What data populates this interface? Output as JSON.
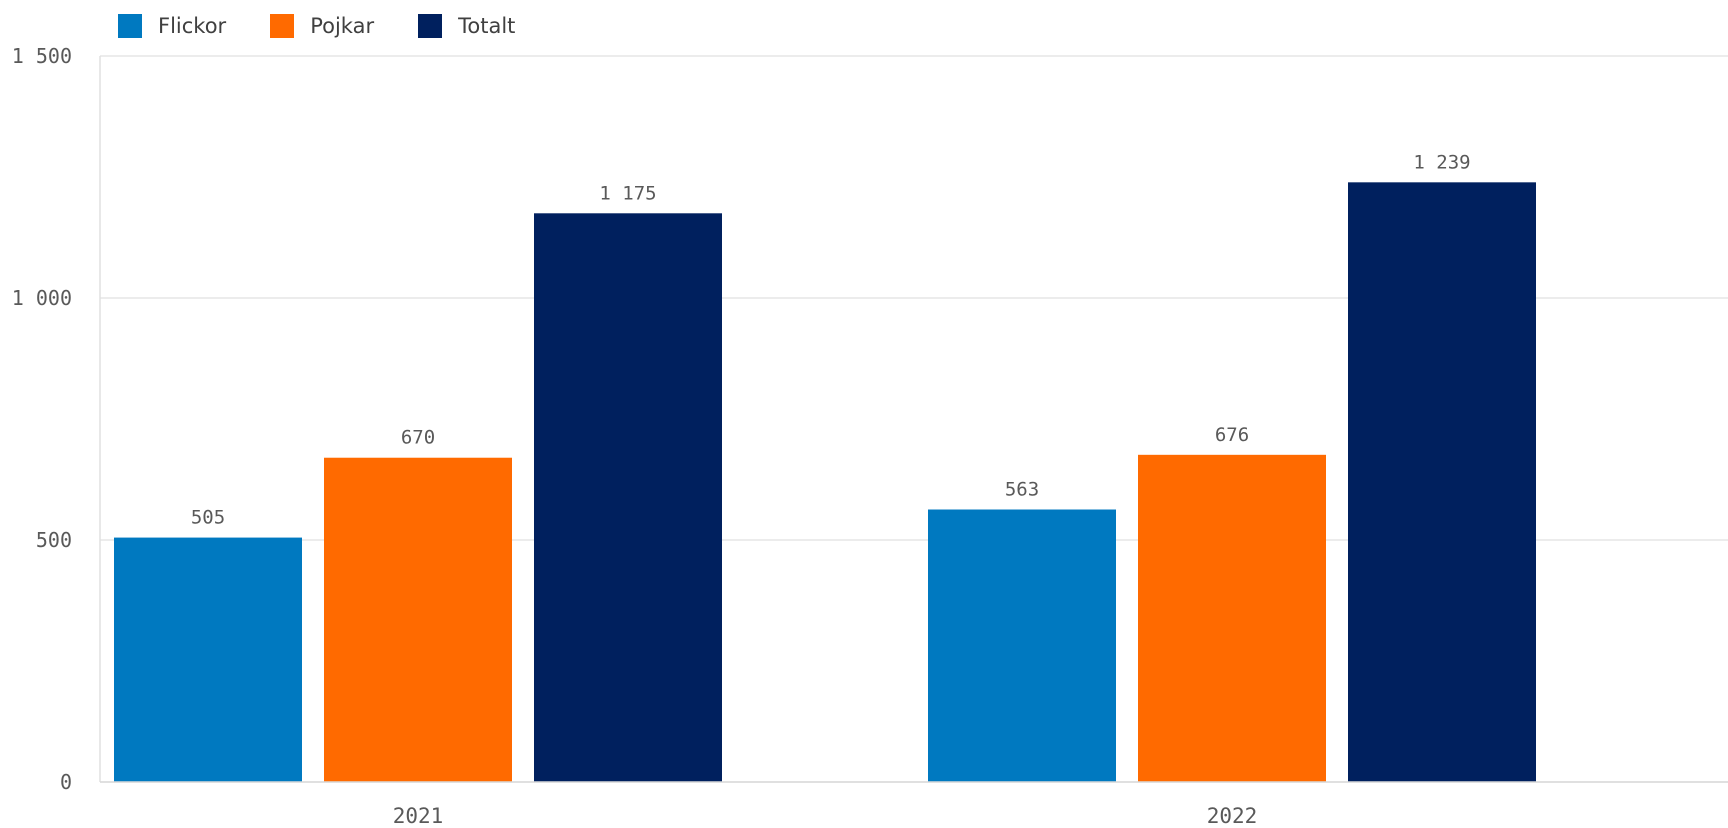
{
  "chart_data": {
    "type": "bar",
    "categories": [
      "2021",
      "2022"
    ],
    "series": [
      {
        "name": "Flickor",
        "values": [
          505,
          563
        ],
        "color": "#0079C0"
      },
      {
        "name": "Pojkar",
        "values": [
          670,
          676
        ],
        "color": "#FF6A00"
      },
      {
        "name": "Totalt",
        "values": [
          1175,
          1239
        ],
        "color": "#00205E"
      }
    ],
    "value_labels": [
      [
        "505",
        "563"
      ],
      [
        "670",
        "676"
      ],
      [
        "1 175",
        "1 239"
      ]
    ],
    "ylim": [
      0,
      1500
    ],
    "yticks": [
      0,
      500,
      1000,
      1500
    ],
    "ytick_labels": [
      "0",
      "500",
      "1 000",
      "1 500"
    ],
    "grid": true,
    "legend_position": "top-left",
    "title": "",
    "xlabel": "",
    "ylabel": ""
  }
}
